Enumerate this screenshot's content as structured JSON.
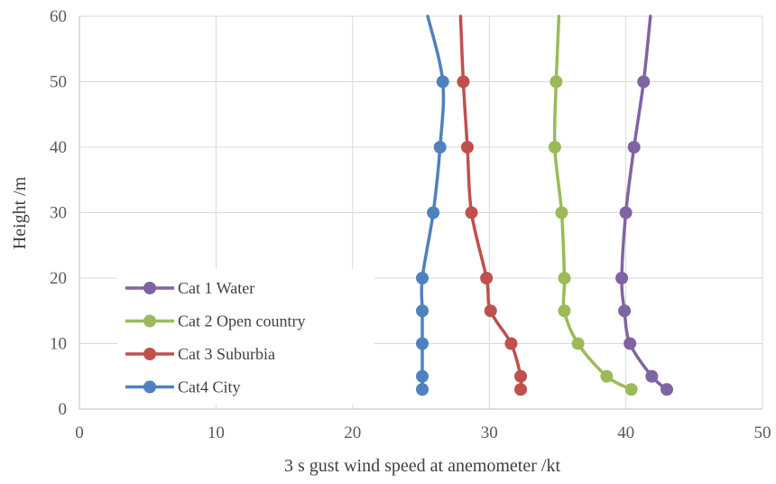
{
  "chart_data": {
    "type": "line",
    "xlabel": "3 s gust wind speed at anemometer /kt",
    "ylabel": "Height /m",
    "xlim": [
      0,
      50
    ],
    "ylim": [
      0,
      60
    ],
    "xticks": [
      0,
      10,
      20,
      30,
      40,
      50
    ],
    "yticks": [
      0,
      10,
      20,
      30,
      40,
      50,
      60
    ],
    "grid": true,
    "legend_position": "bottom-left",
    "series": [
      {
        "name": "Cat 1 Water",
        "color": "#8064a2",
        "points": [
          [
            43.0,
            3
          ],
          [
            41.9,
            5
          ],
          [
            40.3,
            10
          ],
          [
            39.9,
            15
          ],
          [
            39.7,
            20
          ],
          [
            40.0,
            30
          ],
          [
            40.6,
            40
          ],
          [
            41.3,
            50
          ]
        ],
        "line_extension": [
          41.3,
          50,
          41.8,
          60
        ]
      },
      {
        "name": "Cat 2 Open country",
        "color": "#9bbb59",
        "points": [
          [
            40.4,
            3
          ],
          [
            38.6,
            5
          ],
          [
            36.5,
            10
          ],
          [
            35.5,
            15
          ],
          [
            35.5,
            20
          ],
          [
            35.3,
            30
          ],
          [
            34.8,
            40
          ],
          [
            34.9,
            50
          ]
        ],
        "line_extension": [
          34.9,
          50,
          35.1,
          60
        ]
      },
      {
        "name": "Cat 3 Suburbia",
        "color": "#c0504d",
        "points": [
          [
            32.3,
            3
          ],
          [
            32.3,
            5
          ],
          [
            31.6,
            10
          ],
          [
            30.1,
            15
          ],
          [
            29.8,
            20
          ],
          [
            28.7,
            30
          ],
          [
            28.4,
            40
          ],
          [
            28.1,
            50
          ]
        ],
        "line_extension": [
          28.1,
          50,
          27.9,
          60
        ]
      },
      {
        "name": "Cat4 City",
        "color": "#4f81bd",
        "points": [
          [
            25.1,
            3
          ],
          [
            25.1,
            5
          ],
          [
            25.1,
            10
          ],
          [
            25.1,
            15
          ],
          [
            25.1,
            20
          ],
          [
            25.9,
            30
          ],
          [
            26.4,
            40
          ],
          [
            26.6,
            50
          ]
        ],
        "line_extension": [
          26.6,
          50,
          25.5,
          60
        ]
      }
    ]
  }
}
